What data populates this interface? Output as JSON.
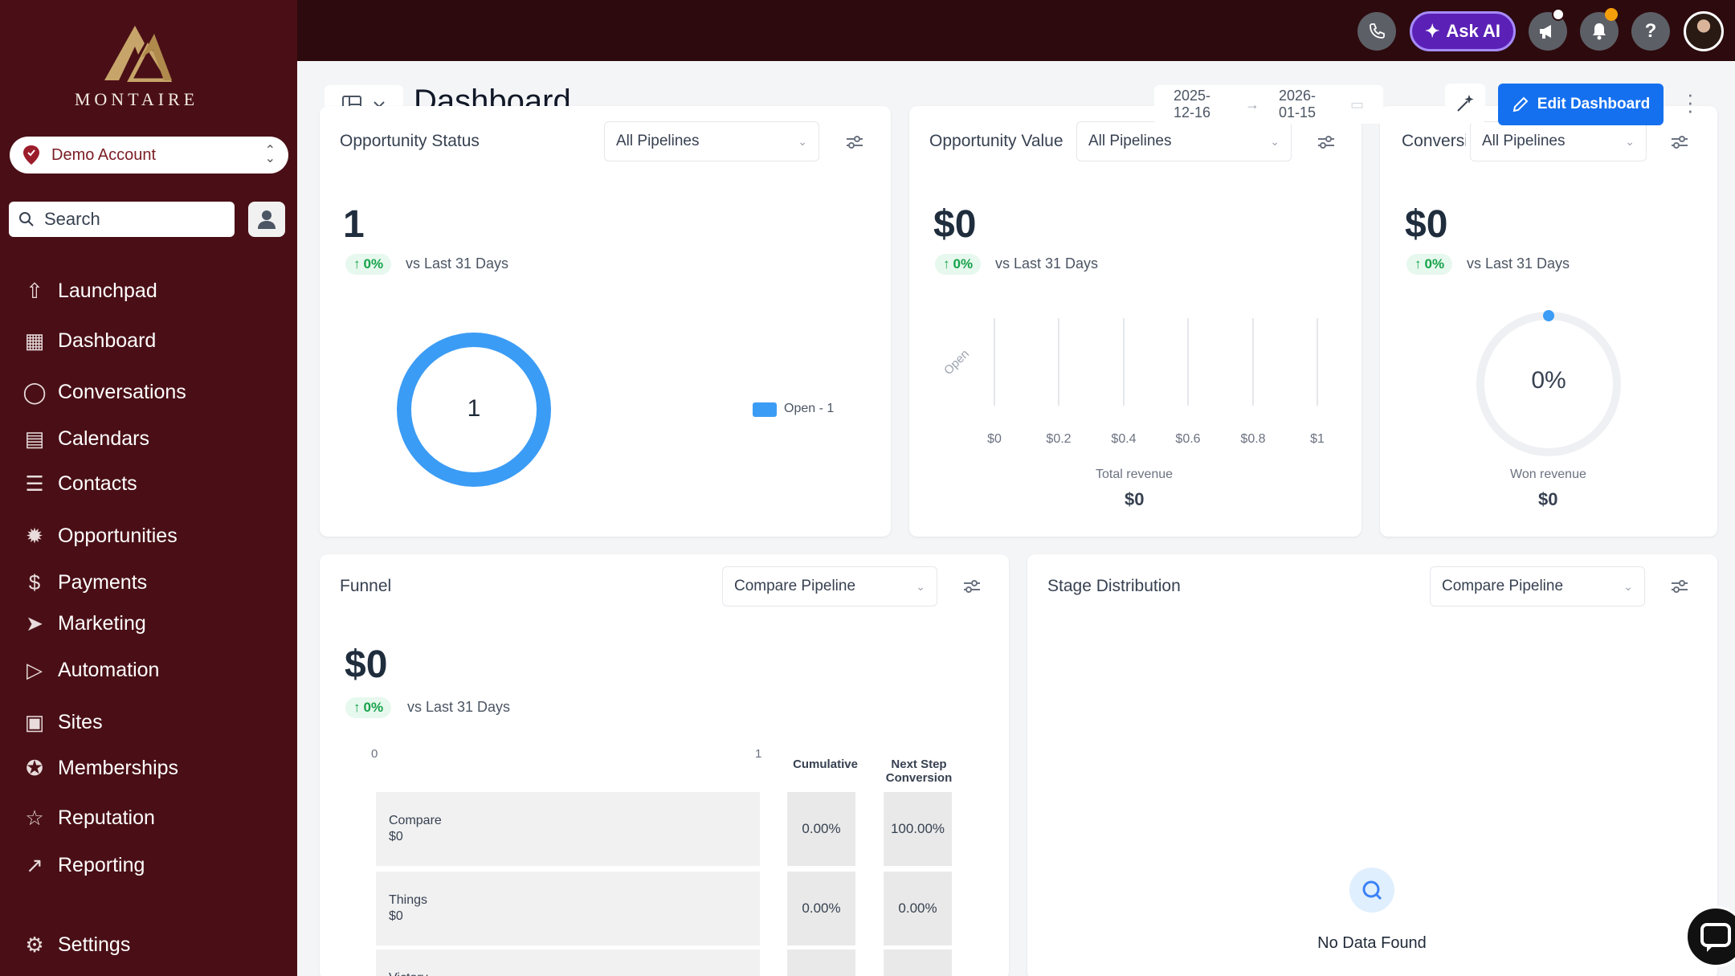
{
  "sidebar": {
    "logo_text": "MONTAIRE",
    "account": "Demo Account",
    "search_placeholder": "Search",
    "items": [
      {
        "label": "Launchpad",
        "icon": "launchpad-icon"
      },
      {
        "label": "Dashboard",
        "icon": "dashboard-icon"
      },
      {
        "label": "Conversations",
        "icon": "chat-icon"
      },
      {
        "label": "Calendars",
        "icon": "calendar-icon"
      },
      {
        "label": "Contacts",
        "icon": "contacts-icon"
      },
      {
        "label": "Opportunities",
        "icon": "opportunities-icon"
      },
      {
        "label": "Payments",
        "icon": "payments-icon"
      },
      {
        "label": "Marketing",
        "icon": "send-icon"
      },
      {
        "label": "Automation",
        "icon": "automation-icon"
      },
      {
        "label": "Sites",
        "icon": "sites-icon"
      },
      {
        "label": "Memberships",
        "icon": "memberships-icon"
      },
      {
        "label": "Reputation",
        "icon": "star-icon"
      },
      {
        "label": "Reporting",
        "icon": "trend-icon"
      },
      {
        "label": "Settings",
        "icon": "gear-icon"
      }
    ]
  },
  "topbar": {
    "ask_ai": "Ask AI"
  },
  "header": {
    "title": "Dashboard",
    "date_start": "2025-12-16",
    "date_end": "2026-01-15",
    "edit_button": "Edit Dashboard"
  },
  "widgets": {
    "status": {
      "title": "Opportunity Status",
      "select": "All Pipelines",
      "value": "1",
      "delta": "0%",
      "compare": "vs Last 31 Days",
      "donut_center": "1",
      "legend": "Open - 1"
    },
    "value": {
      "title": "Opportunity Value",
      "select": "All Pipelines",
      "value": "$0",
      "delta": "0%",
      "compare": "vs Last 31 Days",
      "y_label": "Open",
      "x_ticks": [
        "$0",
        "$0.2",
        "$0.4",
        "$0.6",
        "$0.8",
        "$1"
      ],
      "total_label": "Total revenue",
      "total_value": "$0"
    },
    "conversion": {
      "title": "Conversion",
      "select": "All Pipelines",
      "value": "$0",
      "delta": "0%",
      "compare": "vs Last 31 Days",
      "gauge": "0%",
      "won_label": "Won revenue",
      "won_value": "$0"
    },
    "funnel": {
      "title": "Funnel",
      "select": "Compare Pipeline",
      "value": "$0",
      "delta": "0%",
      "compare": "vs Last 31 Days",
      "axis_min": "0",
      "axis_max": "1",
      "col_cumulative": "Cumulative",
      "col_next": "Next Step Conversion",
      "rows": [
        {
          "name": "Compare",
          "value": "$0",
          "cumulative": "0.00%",
          "next": "100.00%"
        },
        {
          "name": "Things",
          "value": "$0",
          "cumulative": "0.00%",
          "next": "0.00%"
        },
        {
          "name": "Victory",
          "value": "",
          "cumulative": "",
          "next": ""
        }
      ]
    },
    "stage": {
      "title": "Stage Distribution",
      "select": "Compare Pipeline",
      "empty": "No Data Found"
    }
  },
  "colors": {
    "sidebar": "#4a0f16",
    "topbar": "#2d0a0e",
    "accent": "#1570ef",
    "donut": "#3b9cf5"
  }
}
